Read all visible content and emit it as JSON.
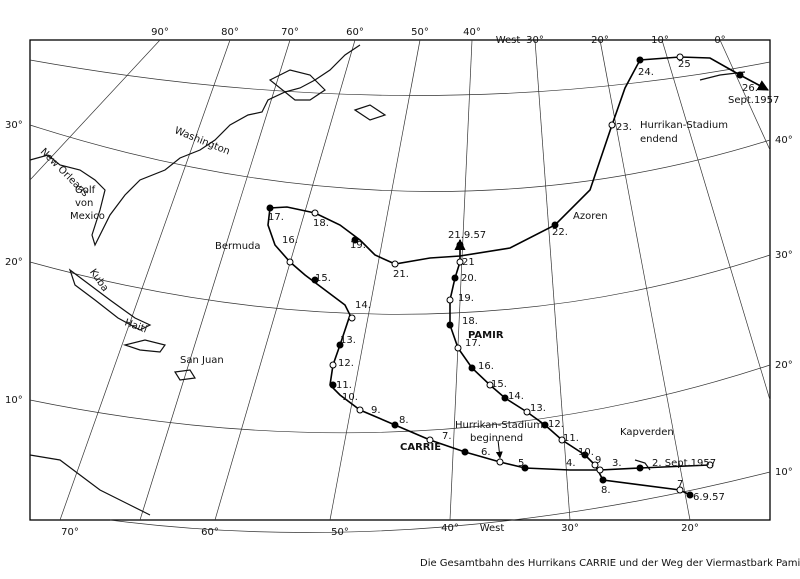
{
  "map": {
    "longitude_labels_top": [
      "90°",
      "80°",
      "70°",
      "60°",
      "50°",
      "40°",
      "West",
      "30°",
      "20°",
      "10°",
      "0°"
    ],
    "latitude_labels_left": [
      "30°",
      "20°",
      "10°"
    ],
    "latitude_labels_right": [
      "40°",
      "30°",
      "20°",
      "10°"
    ],
    "longitude_labels_bottom": [
      "70°",
      "60°",
      "50°",
      "40°",
      "West",
      "30°",
      "20°"
    ],
    "places": [
      "New Orleans",
      "Golf",
      "von",
      "Mexico",
      "Washington",
      "Kuba",
      "Haiti",
      "San Juan",
      "Bermuda",
      "Azoren",
      "Kapverden"
    ],
    "annotations": [
      "Hurrikan-Stadium",
      "endend",
      "Hurrikan-Stadium",
      "beginnend"
    ],
    "tracks": {
      "carrie": {
        "name": "CARRIE",
        "labels": [
          "2. Sept.1957",
          "3.",
          "4.",
          "5.",
          "6.",
          "7.",
          "8.",
          "9.",
          "10.",
          "11.",
          "12.",
          "13.",
          "14.",
          "15.",
          "16.",
          "17.",
          "18.",
          "19.",
          "21.",
          "22.",
          "23.",
          "24.",
          "25",
          "26.",
          "Sept.1957"
        ]
      },
      "pamir": {
        "name": "PAMIR",
        "labels": [
          "6.9.57",
          "7",
          "8.",
          "9",
          "10.",
          "11.",
          "12.",
          "13.",
          "14.",
          "15.",
          "16.",
          "17.",
          "18.",
          "19.",
          "20.",
          "21",
          "21.9.57"
        ]
      }
    },
    "caption": "Die Gesamtbahn des Hurrikans CARRIE und der Weg der Viermastbark Pamir ab"
  }
}
